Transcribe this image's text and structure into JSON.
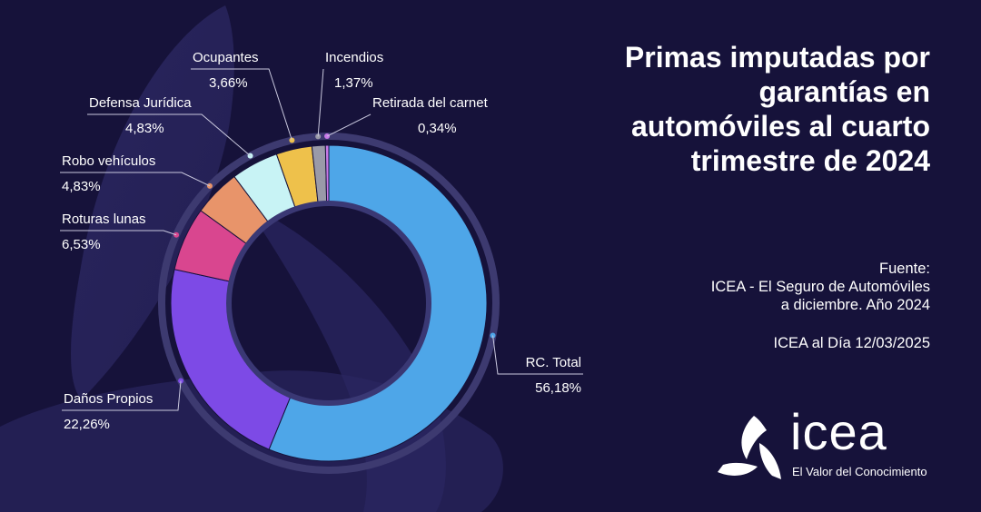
{
  "title": "Primas imputadas por garantías en automóviles al cuarto trimestre de 2024",
  "source": {
    "heading": "Fuente:",
    "line1": "ICEA - El Seguro de Automóviles",
    "line2": "a diciembre. Año 2024",
    "date": "ICEA al Día 12/03/2025"
  },
  "logo": {
    "name": "icea",
    "tagline": "El Valor del Conocimiento"
  },
  "colors": {
    "background": "#16123a",
    "rc_total": "#4ea6e8",
    "danos_propios": "#7d4ae6",
    "roturas_lunas": "#d9468f",
    "robo_vehiculos": "#e8946a",
    "defensa_juridica": "#c8f3f5",
    "ocupantes": "#eec14b",
    "incendios": "#9a9aa8",
    "retirada_carnet": "#c879e8"
  },
  "chart_data": {
    "type": "pie",
    "variant": "donut",
    "legend": "callout labels",
    "slices": [
      {
        "label": "RC. Total",
        "value_text": "56,18",
        "value": 56.18,
        "color": "#4ea6e8"
      },
      {
        "label": "Daños Propios",
        "value_text": "22,26",
        "value": 22.26,
        "color": "#7d4ae6"
      },
      {
        "label": "Roturas lunas",
        "value_text": "6,53",
        "value": 6.53,
        "color": "#d9468f"
      },
      {
        "label": "Robo vehículos",
        "value_text": "4,83",
        "value": 4.83,
        "color": "#e8946a"
      },
      {
        "label": "Defensa Jurídica",
        "value_text": "4,83",
        "value": 4.83,
        "color": "#c8f3f5"
      },
      {
        "label": "Ocupantes",
        "value_text": "3,66",
        "value": 3.66,
        "color": "#eec14b"
      },
      {
        "label": "Incendios",
        "value_text": "1,37",
        "value": 1.37,
        "color": "#9a9aa8"
      },
      {
        "label": "Retirada del carnet",
        "value_text": "0,34",
        "value": 0.34,
        "color": "#c879e8"
      }
    ],
    "unit": "%"
  }
}
